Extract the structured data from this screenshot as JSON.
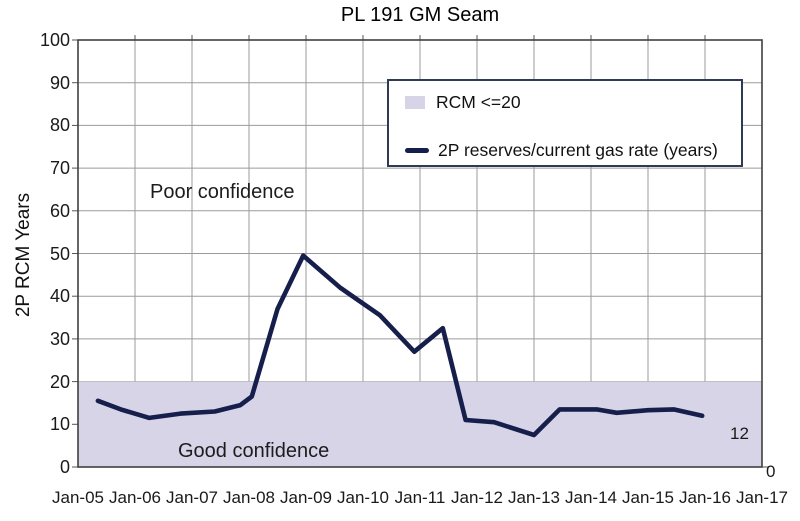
{
  "chart": {
    "title": "PL 191 GM Seam",
    "y_axis": {
      "label": "2P RCM Years",
      "ticks": [
        0,
        10,
        20,
        30,
        40,
        50,
        60,
        70,
        80,
        90,
        100
      ]
    },
    "x_axis": {
      "tick_labels": [
        "Jan-05",
        "Jan-06",
        "Jan-07",
        "Jan-08",
        "Jan-09",
        "Jan-10",
        "Jan-11",
        "Jan-12",
        "Jan-13",
        "Jan-14",
        "Jan-15",
        "Jan-16",
        "Jan-17"
      ]
    },
    "secondary_axis_zero_label": "0",
    "annotations": {
      "poor": "Poor confidence",
      "good": "Good confidence",
      "end_value_label": "12"
    },
    "legend": {
      "items": [
        {
          "type": "area",
          "label": "RCM <=20"
        },
        {
          "type": "line",
          "label": "2P reserves/current gas rate (years)"
        }
      ]
    },
    "colors": {
      "band": "#d8d4e8",
      "line": "#161f4c",
      "grid": "#9b9b9b",
      "border": "#404040",
      "background": "#ffffff"
    }
  },
  "chart_data": {
    "type": "line",
    "title": "PL 191 GM Seam",
    "xlabel": "",
    "ylabel": "2P RCM Years",
    "ylim": [
      0,
      100
    ],
    "x_tick_labels": [
      "Jan-05",
      "Jan-06",
      "Jan-07",
      "Jan-08",
      "Jan-09",
      "Jan-10",
      "Jan-11",
      "Jan-12",
      "Jan-13",
      "Jan-14",
      "Jan-15",
      "Jan-16",
      "Jan-17"
    ],
    "grid": true,
    "legend_position": "upper right",
    "band": {
      "label": "RCM <=20",
      "from": 0,
      "to": 20,
      "color": "#d8d4e8",
      "meaning_below": "Good confidence",
      "meaning_above": "Poor confidence"
    },
    "series": [
      {
        "name": "2P reserves/current gas rate (years)",
        "color": "#161f4c",
        "end_label": "12",
        "points": [
          [
            2005.35,
            15.5
          ],
          [
            2005.75,
            13.5
          ],
          [
            2006.25,
            11.5
          ],
          [
            2006.8,
            12.5
          ],
          [
            2007.4,
            13.0
          ],
          [
            2007.85,
            14.5
          ],
          [
            2008.05,
            16.5
          ],
          [
            2008.5,
            37.0
          ],
          [
            2008.95,
            49.5
          ],
          [
            2009.6,
            42.0
          ],
          [
            2010.3,
            35.5
          ],
          [
            2010.9,
            27.0
          ],
          [
            2011.4,
            32.5
          ],
          [
            2011.8,
            11.0
          ],
          [
            2012.3,
            10.5
          ],
          [
            2013.0,
            7.5
          ],
          [
            2013.45,
            13.5
          ],
          [
            2014.1,
            13.5
          ],
          [
            2014.45,
            12.7
          ],
          [
            2015.0,
            13.3
          ],
          [
            2015.45,
            13.5
          ],
          [
            2015.95,
            12.0
          ]
        ]
      }
    ]
  }
}
